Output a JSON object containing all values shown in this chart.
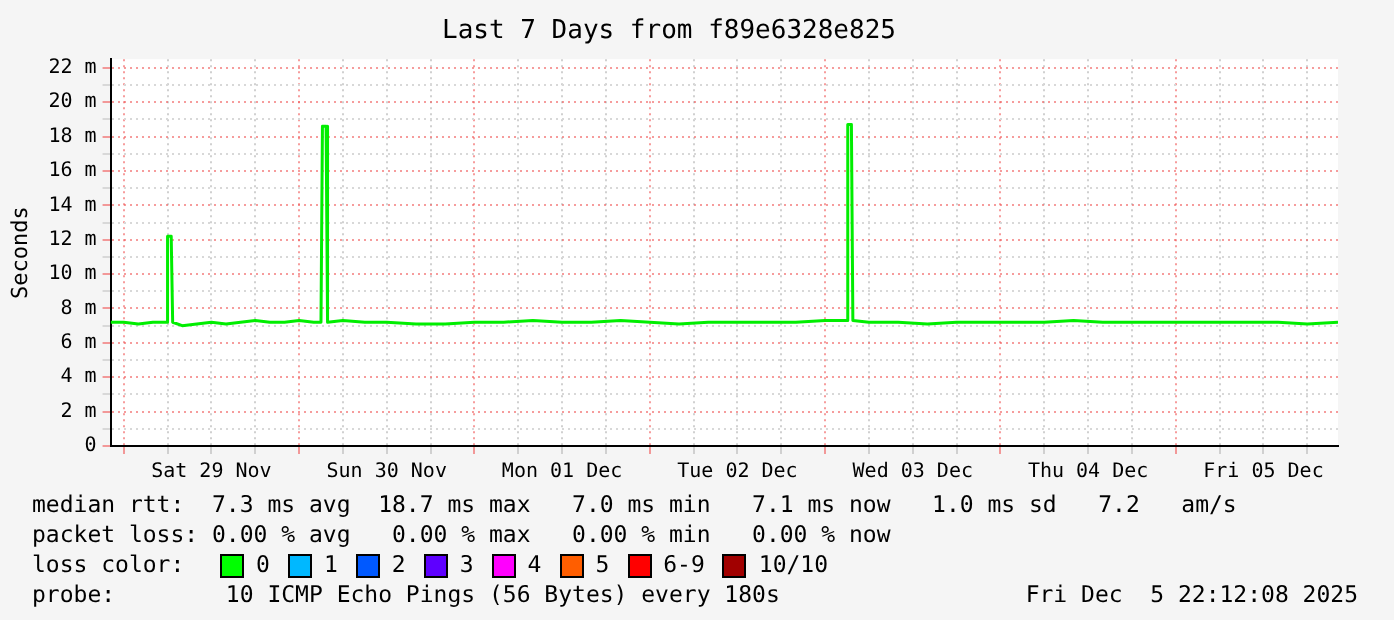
{
  "chart_data": {
    "type": "line",
    "title": "Last 7 Days from f89e6328e825",
    "ylabel": "Seconds",
    "xlim": [
      "2025-11-28T22:12",
      "2025-12-05T22:12"
    ],
    "xticks": [
      {
        "value": "2025-11-29T00:00",
        "label": null
      },
      {
        "value": "2025-11-29T06:00",
        "label": null
      },
      {
        "value": "2025-11-29T12:00",
        "label": "Sat 29 Nov"
      },
      {
        "value": "2025-11-29T18:00",
        "label": null
      },
      {
        "value": "2025-11-30T00:00",
        "label": null
      },
      {
        "value": "2025-11-30T06:00",
        "label": null
      },
      {
        "value": "2025-11-30T12:00",
        "label": "Sun 30 Nov"
      },
      {
        "value": "2025-11-30T18:00",
        "label": null
      },
      {
        "value": "2025-12-01T00:00",
        "label": null
      },
      {
        "value": "2025-12-01T06:00",
        "label": null
      },
      {
        "value": "2025-12-01T12:00",
        "label": "Mon 01 Dec"
      },
      {
        "value": "2025-12-01T18:00",
        "label": null
      },
      {
        "value": "2025-12-02T00:00",
        "label": null
      },
      {
        "value": "2025-12-02T06:00",
        "label": null
      },
      {
        "value": "2025-12-02T12:00",
        "label": "Tue 02 Dec"
      },
      {
        "value": "2025-12-02T18:00",
        "label": null
      },
      {
        "value": "2025-12-03T00:00",
        "label": null
      },
      {
        "value": "2025-12-03T06:00",
        "label": null
      },
      {
        "value": "2025-12-03T12:00",
        "label": "Wed 03 Dec"
      },
      {
        "value": "2025-12-03T18:00",
        "label": null
      },
      {
        "value": "2025-12-04T00:00",
        "label": null
      },
      {
        "value": "2025-12-04T06:00",
        "label": null
      },
      {
        "value": "2025-12-04T12:00",
        "label": "Thu 04 Dec"
      },
      {
        "value": "2025-12-04T18:00",
        "label": null
      },
      {
        "value": "2025-12-05T00:00",
        "label": null
      },
      {
        "value": "2025-12-05T06:00",
        "label": null
      },
      {
        "value": "2025-12-05T12:00",
        "label": "Fri 05 Dec"
      },
      {
        "value": "2025-12-05T18:00",
        "label": null
      }
    ],
    "ylim": [
      0,
      22.5
    ],
    "yticks": [
      0,
      {
        "value": 1,
        "label": null
      },
      {
        "value": 2,
        "label": "2 m"
      },
      {
        "value": 3,
        "label": null
      },
      {
        "value": 4,
        "label": "4 m"
      },
      {
        "value": 5,
        "label": null
      },
      {
        "value": 6,
        "label": "6 m"
      },
      {
        "value": 7,
        "label": null
      },
      {
        "value": 8,
        "label": "8 m"
      },
      {
        "value": 9,
        "label": null
      },
      {
        "value": 10,
        "label": "10 m"
      },
      {
        "value": 11,
        "label": null
      },
      {
        "value": 12,
        "label": "12 m"
      },
      {
        "value": 13,
        "label": null
      },
      {
        "value": 14,
        "label": "14 m"
      },
      {
        "value": 15,
        "label": null
      },
      {
        "value": 16,
        "label": "16 m"
      },
      {
        "value": 17,
        "label": null
      },
      {
        "value": 18,
        "label": "18 m"
      },
      {
        "value": 19,
        "label": null
      },
      {
        "value": 20,
        "label": "20 m"
      },
      {
        "value": 21,
        "label": null
      },
      {
        "value": 22,
        "label": "22 m"
      }
    ],
    "grid": true,
    "marker": "none",
    "line_style": "solid",
    "series": [
      {
        "color": "#00ee00",
        "x": [
          "2025-11-28T22:12",
          "2025-11-29T00:00",
          "2025-11-29T02:00",
          "2025-11-29T04:00",
          "2025-11-29T05:48",
          "2025-11-29T06:00",
          "2025-11-29T06:30",
          "2025-11-29T06:42",
          "2025-11-29T08:00",
          "2025-11-29T10:00",
          "2025-11-29T12:00",
          "2025-11-29T14:00",
          "2025-11-29T16:00",
          "2025-11-29T18:00",
          "2025-11-29T20:00",
          "2025-11-29T22:00",
          "2025-11-30T00:00",
          "2025-11-30T02:00",
          "2025-11-30T03:00",
          "2025-11-30T03:12",
          "2025-11-30T03:42",
          "2025-11-30T03:54",
          "2025-11-30T06:00",
          "2025-11-30T09:00",
          "2025-11-30T12:00",
          "2025-11-30T16:00",
          "2025-11-30T20:00",
          "2025-12-01T00:00",
          "2025-12-01T04:00",
          "2025-12-01T08:00",
          "2025-12-01T12:00",
          "2025-12-01T16:00",
          "2025-12-01T20:00",
          "2025-12-02T00:00",
          "2025-12-02T04:00",
          "2025-12-02T08:00",
          "2025-12-02T12:00",
          "2025-12-02T16:00",
          "2025-12-02T20:00",
          "2025-12-03T00:00",
          "2025-12-03T02:54",
          "2025-12-03T03:06",
          "2025-12-03T03:36",
          "2025-12-03T03:48",
          "2025-12-03T06:00",
          "2025-12-03T10:00",
          "2025-12-03T14:00",
          "2025-12-03T18:00",
          "2025-12-03T22:00",
          "2025-12-04T02:00",
          "2025-12-04T06:00",
          "2025-12-04T10:00",
          "2025-12-04T14:00",
          "2025-12-04T18:00",
          "2025-12-04T22:00",
          "2025-12-05T02:00",
          "2025-12-05T06:00",
          "2025-12-05T10:00",
          "2025-12-05T14:00",
          "2025-12-05T18:00",
          "2025-12-05T22:12"
        ],
        "values": [
          7.2,
          7.2,
          7.1,
          7.2,
          7.2,
          12.2,
          12.2,
          7.2,
          7.0,
          7.1,
          7.2,
          7.1,
          7.2,
          7.3,
          7.2,
          7.2,
          7.3,
          7.2,
          7.2,
          18.6,
          18.6,
          7.2,
          7.3,
          7.2,
          7.2,
          7.1,
          7.1,
          7.2,
          7.2,
          7.3,
          7.2,
          7.2,
          7.3,
          7.2,
          7.1,
          7.2,
          7.2,
          7.2,
          7.2,
          7.3,
          7.3,
          18.7,
          18.7,
          7.3,
          7.2,
          7.2,
          7.1,
          7.2,
          7.2,
          7.2,
          7.2,
          7.3,
          7.2,
          7.2,
          7.2,
          7.2,
          7.2,
          7.2,
          7.2,
          7.1,
          7.2
        ]
      }
    ],
    "annotations": [
      "median rtt:  7.3 ms avg  18.7 ms max   7.0 ms min   7.1 ms now   1.0 ms sd   7.2   am/s",
      "packet loss: 0.00 % avg   0.00 % max   0.00 % min   0.00 % now",
      "loss color:",
      "0",
      "1",
      "2",
      "3",
      "4",
      "5",
      "6-9",
      "10/10",
      "probe:        10 ICMP Echo Pings (56 Bytes) every 180s",
      "Fri Dec  5 22:12:08 2025"
    ]
  }
}
